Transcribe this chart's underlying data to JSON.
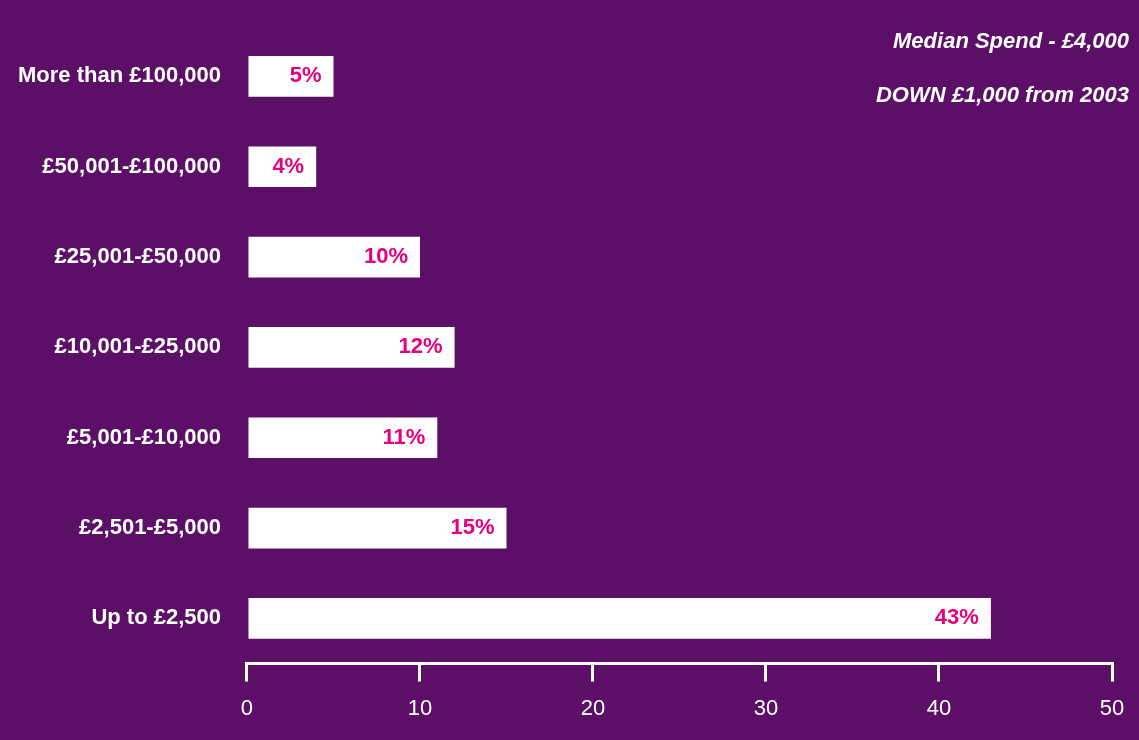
{
  "chart_data": {
    "type": "bar",
    "orientation": "horizontal",
    "categories": [
      "More than £100,000",
      "£50,001-£100,000",
      "£25,001-£50,000",
      "£10,001-£25,000",
      "£5,001-£10,000",
      "£2,501-£5,000",
      "Up to £2,500"
    ],
    "values": [
      5,
      4,
      10,
      12,
      11,
      15,
      43
    ],
    "value_labels": [
      "5%",
      "4%",
      "10%",
      "12%",
      "11%",
      "15%",
      "43%"
    ],
    "color": "#ffffff",
    "xlim": [
      0,
      50
    ],
    "xticks": [
      0,
      10,
      20,
      30,
      40,
      50
    ],
    "grid": false,
    "legend": false,
    "annotations": [
      "Median Spend - £4,000",
      "DOWN £1,000 from 2003"
    ]
  }
}
